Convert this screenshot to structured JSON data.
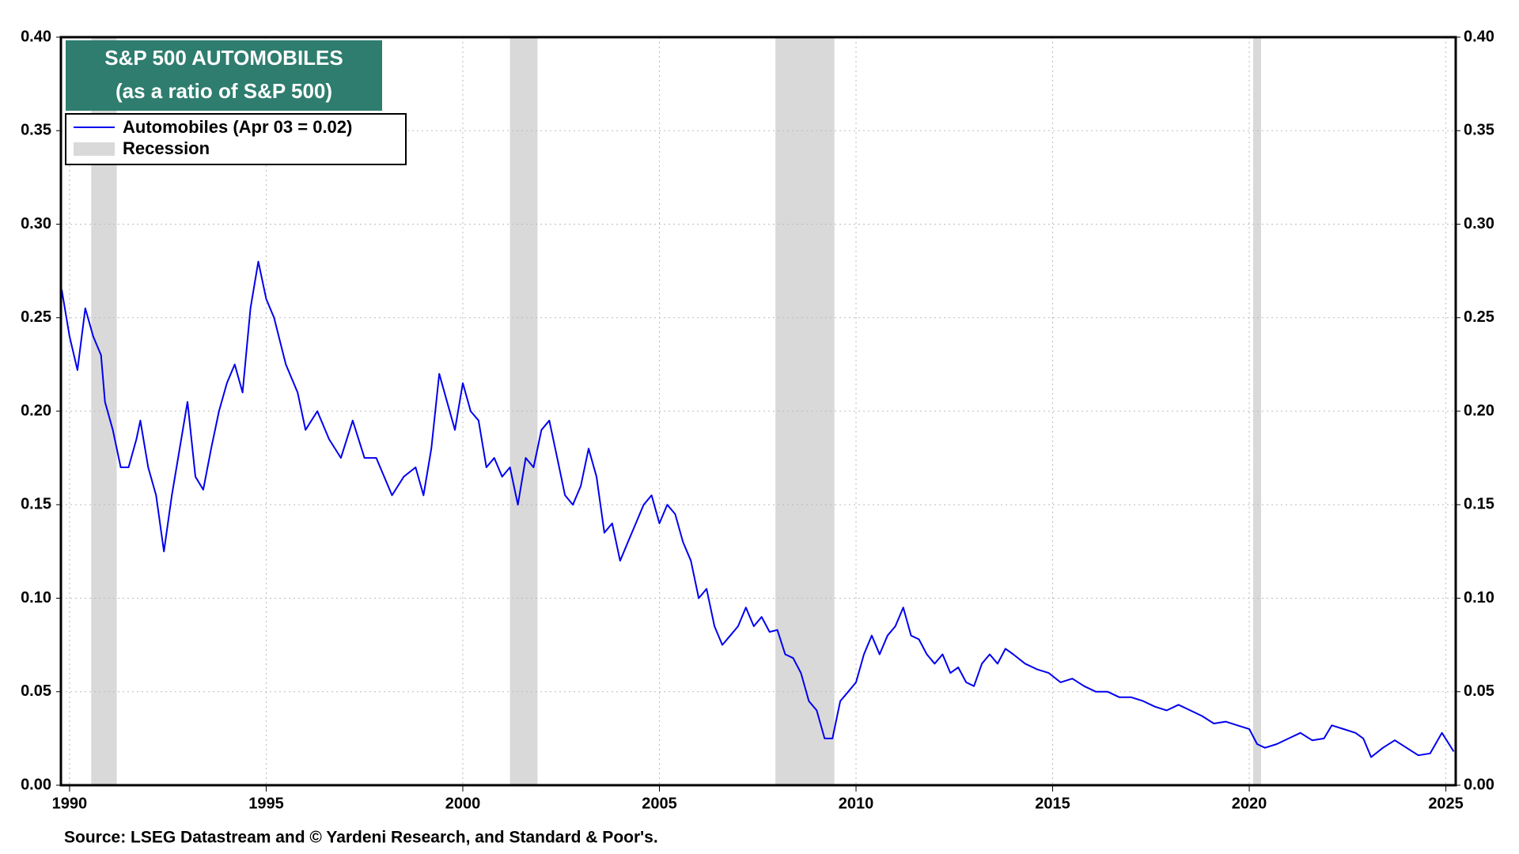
{
  "chart_data": {
    "type": "line",
    "title": "S&P 500 AUTOMOBILES",
    "subtitle": "(as a ratio of S&P 500)",
    "source": "Source: LSEG Datastream and © Yardeni Research, and Standard & Poor's.",
    "recession_label": "Recession",
    "recession_color": "#d9d9d9",
    "recessions": [
      {
        "start": 1990.55,
        "end": 1991.2
      },
      {
        "start": 2001.2,
        "end": 2001.9
      },
      {
        "start": 2007.95,
        "end": 2009.45
      },
      {
        "start": 2020.1,
        "end": 2020.3
      }
    ],
    "xlim": [
      1989.78,
      2025.25
    ],
    "xticks": [
      1990,
      1995,
      2000,
      2005,
      2010,
      2015,
      2020,
      2025
    ],
    "ylim": [
      0,
      0.4
    ],
    "yticks": [
      {
        "value": 0,
        "label": "0.00"
      },
      0.05,
      {
        "value": 0.1,
        "label": "0.10"
      },
      0.15,
      {
        "value": 0.2,
        "label": "0.20"
      },
      0.25,
      {
        "value": 0.3,
        "label": "0.30"
      },
      0.35,
      {
        "value": 0.4,
        "label": "0.40"
      }
    ],
    "y2lim": [
      0,
      0.4
    ],
    "y2ticks": [
      {
        "value": 0,
        "label": "0.00"
      },
      0.05,
      {
        "value": 0.1,
        "label": "0.10"
      },
      0.15,
      {
        "value": 0.2,
        "label": "0.20"
      },
      0.25,
      {
        "value": 0.3,
        "label": "0.30"
      },
      0.35,
      {
        "value": 0.4,
        "label": "0.40"
      }
    ],
    "grid": true,
    "x": [
      1989.8,
      1990.0,
      1990.2,
      1990.4,
      1990.6,
      1990.8,
      1990.9,
      1991.1,
      1991.3,
      1991.5,
      1991.7,
      1991.8,
      1992.0,
      1992.2,
      1992.4,
      1992.6,
      1992.8,
      1993.0,
      1993.2,
      1993.4,
      1993.6,
      1993.8,
      1994.0,
      1994.2,
      1994.4,
      1994.6,
      1994.8,
      1995.0,
      1995.2,
      1995.5,
      1995.8,
      1996.0,
      1996.3,
      1996.6,
      1996.9,
      1997.2,
      1997.5,
      1997.8,
      1998.2,
      1998.5,
      1998.8,
      1999.0,
      1999.2,
      1999.4,
      1999.6,
      1999.8,
      2000.0,
      2000.2,
      2000.4,
      2000.6,
      2000.8,
      2001.0,
      2001.2,
      2001.4,
      2001.6,
      2001.8,
      2002.0,
      2002.2,
      2002.4,
      2002.6,
      2002.8,
      2003.0,
      2003.2,
      2003.4,
      2003.6,
      2003.8,
      2004.0,
      2004.2,
      2004.4,
      2004.6,
      2004.8,
      2005.0,
      2005.2,
      2005.4,
      2005.6,
      2005.8,
      2006.0,
      2006.2,
      2006.4,
      2006.6,
      2006.8,
      2007.0,
      2007.2,
      2007.4,
      2007.6,
      2007.8,
      2008.0,
      2008.2,
      2008.4,
      2008.6,
      2008.8,
      2009.0,
      2009.2,
      2009.4,
      2009.6,
      2009.8,
      2010.0,
      2010.2,
      2010.4,
      2010.6,
      2010.8,
      2011.0,
      2011.2,
      2011.4,
      2011.6,
      2011.8,
      2012.0,
      2012.2,
      2012.4,
      2012.6,
      2012.8,
      2013.0,
      2013.2,
      2013.4,
      2013.6,
      2013.8,
      2014.0,
      2014.3,
      2014.6,
      2014.9,
      2015.2,
      2015.5,
      2015.8,
      2016.1,
      2016.4,
      2016.7,
      2017.0,
      2017.3,
      2017.6,
      2017.9,
      2018.2,
      2018.5,
      2018.8,
      2019.1,
      2019.4,
      2019.7,
      2020.0,
      2020.2,
      2020.4,
      2020.7,
      2021.0,
      2021.3,
      2021.6,
      2021.9,
      2022.1,
      2022.4,
      2022.7,
      2022.9,
      2023.1,
      2023.4,
      2023.7,
      2024.0,
      2024.3,
      2024.6,
      2024.9,
      2025.2
    ],
    "series": [
      {
        "name": "Automobiles (Apr 03 = 0.02)",
        "color": "#0000ee",
        "values": [
          0.265,
          0.24,
          0.222,
          0.255,
          0.24,
          0.23,
          0.205,
          0.19,
          0.17,
          0.17,
          0.185,
          0.195,
          0.17,
          0.155,
          0.125,
          0.155,
          0.18,
          0.205,
          0.165,
          0.158,
          0.18,
          0.2,
          0.215,
          0.225,
          0.21,
          0.255,
          0.28,
          0.26,
          0.25,
          0.225,
          0.21,
          0.19,
          0.2,
          0.185,
          0.175,
          0.195,
          0.175,
          0.175,
          0.155,
          0.165,
          0.17,
          0.155,
          0.18,
          0.22,
          0.205,
          0.19,
          0.215,
          0.2,
          0.195,
          0.17,
          0.175,
          0.165,
          0.17,
          0.15,
          0.175,
          0.17,
          0.19,
          0.195,
          0.175,
          0.155,
          0.15,
          0.16,
          0.18,
          0.165,
          0.135,
          0.14,
          0.12,
          0.13,
          0.14,
          0.15,
          0.155,
          0.14,
          0.15,
          0.145,
          0.13,
          0.12,
          0.1,
          0.105,
          0.085,
          0.075,
          0.08,
          0.085,
          0.095,
          0.085,
          0.09,
          0.082,
          0.083,
          0.07,
          0.068,
          0.06,
          0.045,
          0.04,
          0.025,
          0.025,
          0.045,
          0.05,
          0.055,
          0.07,
          0.08,
          0.07,
          0.08,
          0.085,
          0.095,
          0.08,
          0.078,
          0.07,
          0.065,
          0.07,
          0.06,
          0.063,
          0.055,
          0.053,
          0.065,
          0.07,
          0.065,
          0.073,
          0.07,
          0.065,
          0.062,
          0.06,
          0.055,
          0.057,
          0.053,
          0.05,
          0.05,
          0.047,
          0.047,
          0.045,
          0.042,
          0.04,
          0.043,
          0.04,
          0.037,
          0.033,
          0.034,
          0.032,
          0.03,
          0.022,
          0.02,
          0.022,
          0.025,
          0.028,
          0.024,
          0.025,
          0.032,
          0.03,
          0.028,
          0.025,
          0.015,
          0.02,
          0.024,
          0.02,
          0.016,
          0.017,
          0.028,
          0.018
        ]
      }
    ]
  }
}
